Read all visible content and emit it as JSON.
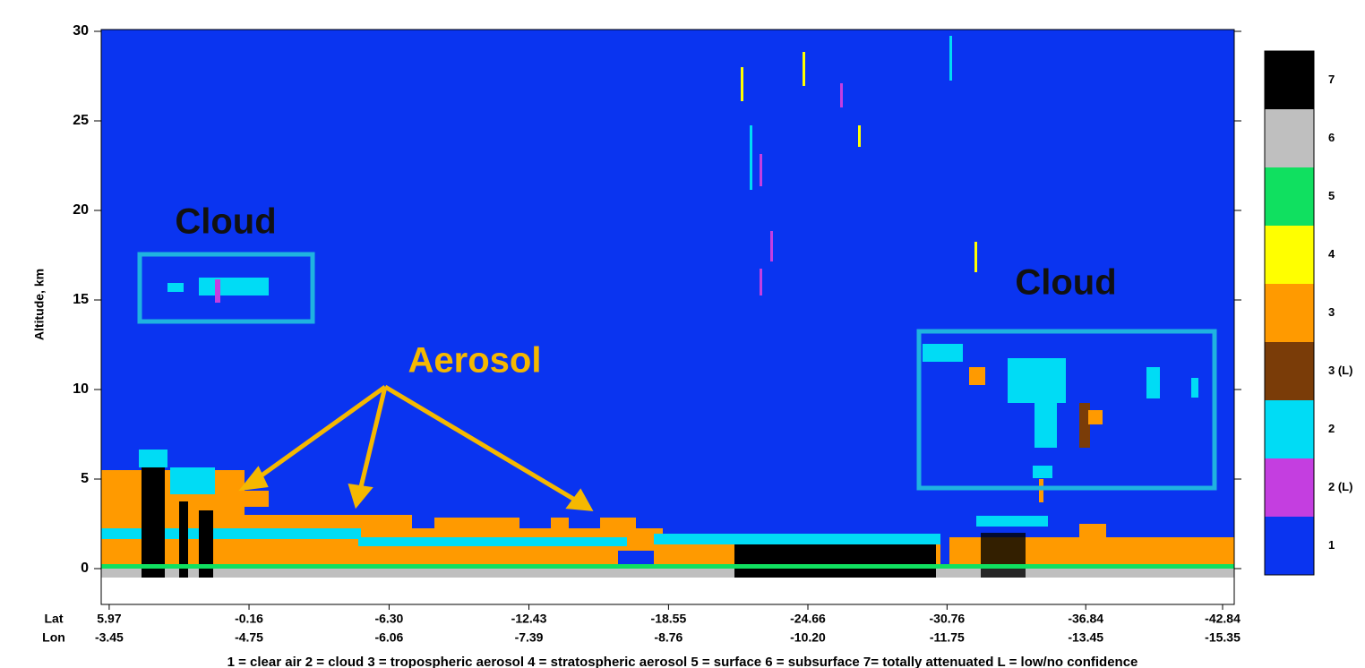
{
  "chart_data": {
    "type": "curtain",
    "ylabel": "Altitude, km",
    "ylim": [
      -2,
      30
    ],
    "yticks": [
      0,
      5,
      10,
      15,
      20,
      25,
      30
    ],
    "xlim": [
      6.32,
      -43.35
    ],
    "x_row_label": "Lat",
    "x_row2_label": "Lon",
    "xticks": [
      5.97,
      -0.16,
      {
        "value": -6.3,
        "label": "-6.30"
      },
      -12.43,
      -18.55,
      -24.66,
      -30.76,
      -36.84,
      -42.84
    ],
    "lon_labels": [
      "-3.45",
      "-4.75",
      "-6.06",
      "-7.39",
      "-8.76",
      "-10.20",
      "-11.75",
      "-13.45",
      "-15.35"
    ],
    "colorbar": [
      {
        "label": "7",
        "color": "#000000"
      },
      {
        "label": "6",
        "color": "#bfbfbf"
      },
      {
        "label": "5",
        "color": "#10e060"
      },
      {
        "label": "4",
        "color": "#ffff00"
      },
      {
        "label": "3",
        "color": "#ff9a00"
      },
      {
        "label": "3 (L)",
        "color": "#7a3c08"
      },
      {
        "label": "2",
        "color": "#00dcf5"
      },
      {
        "label": "2 (L)",
        "color": "#c43ee0"
      },
      {
        "label": "1",
        "color": "#0a34f0"
      }
    ],
    "legend_text": "1 = clear air    2 = cloud    3 = tropospheric aerosol    4 = stratospheric aerosol    5 = surface    6 = subsurface    7= totally attenuated    L = low/no confidence",
    "annotations": [
      "Cloud",
      "Aerosol",
      "Cloud"
    ]
  }
}
